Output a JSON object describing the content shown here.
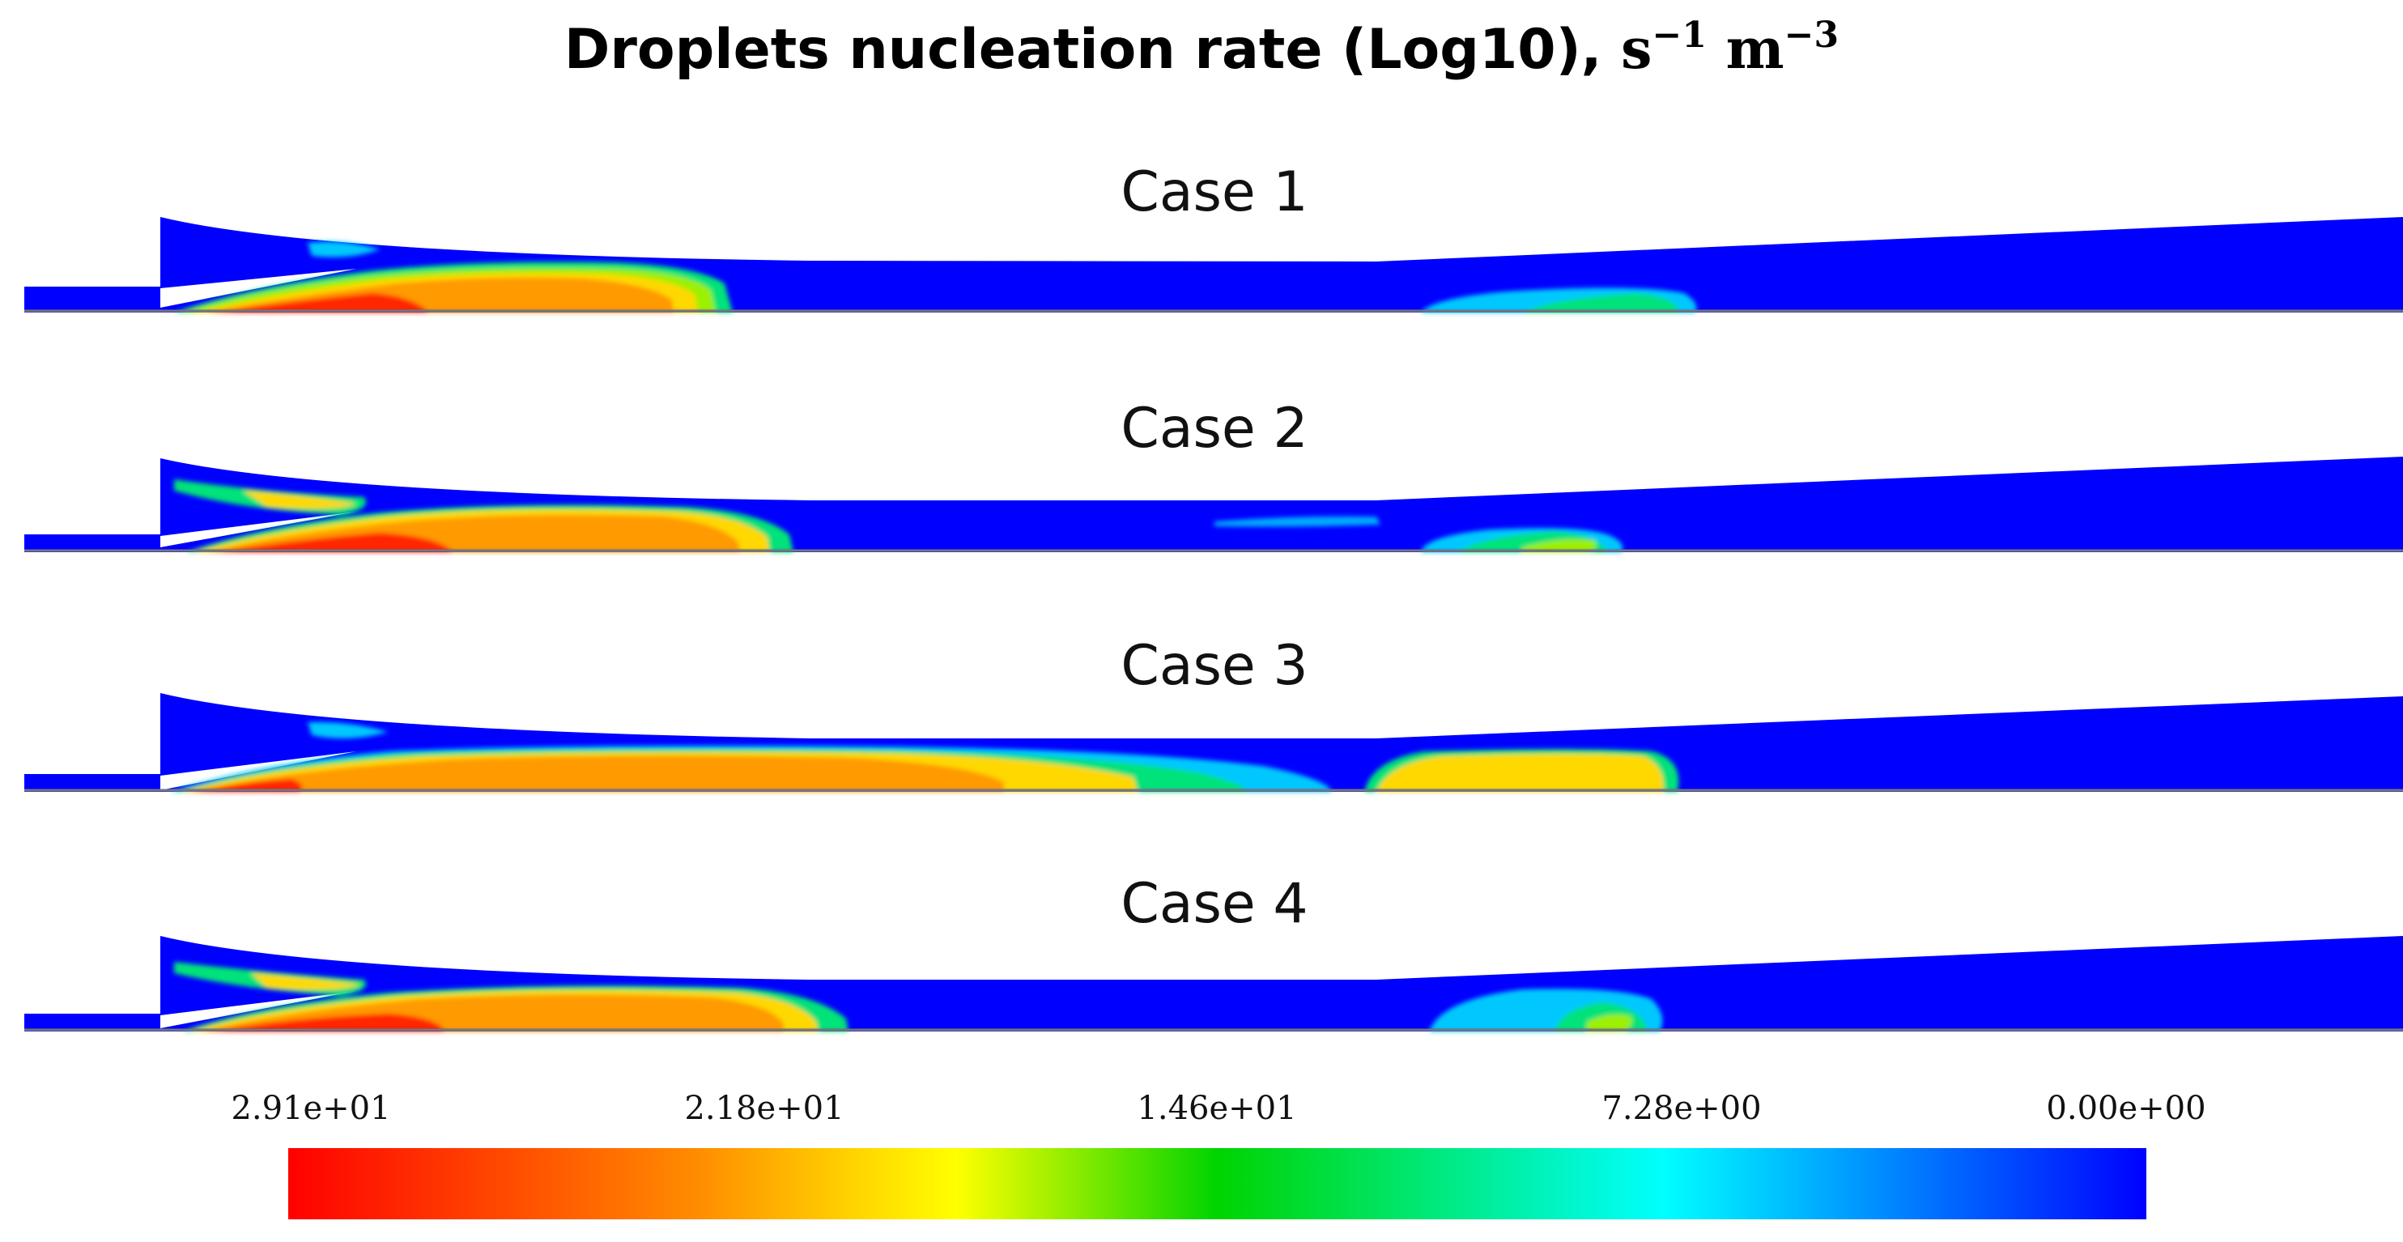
{
  "title_text": "Droplets nucleation rate (Log10),",
  "title_units": {
    "s_base": "s",
    "s_exp": "−1",
    "m_base": "m",
    "m_exp": "−3"
  },
  "cases": [
    "Case 1",
    "Case 2",
    "Case 3",
    "Case 4"
  ],
  "colorbar": {
    "tick_labels": [
      "2.91e+01",
      "2.18e+01",
      "1.46e+01",
      "7.28e+00",
      "0.00e+00"
    ],
    "range": [
      0.0,
      29.1
    ],
    "direction": "high-to-low left-to-right",
    "colors": [
      "#ff0000",
      "#ff7a00",
      "#ffff00",
      "#00d400",
      "#00ffff",
      "#0000ff"
    ]
  },
  "colors": {
    "background_field": "#0000ff",
    "high": "#ff0000",
    "mid_high": "#ff8a00",
    "mid": "#ffd800",
    "mid_low": "#9cf000",
    "low": "#00e27a",
    "cyan": "#00c8ff"
  }
}
